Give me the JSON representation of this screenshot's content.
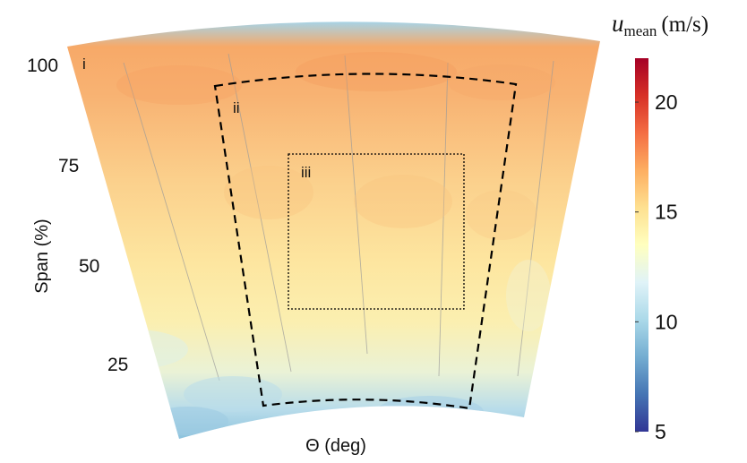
{
  "chart_data": {
    "type": "heatmap",
    "xlabel": "Θ (deg)",
    "ylabel": "Span (%)",
    "y_ticks": [
      {
        "value": 100,
        "label": "100"
      },
      {
        "value": 75,
        "label": "75"
      },
      {
        "value": 50,
        "label": "50"
      },
      {
        "value": 25,
        "label": "25"
      }
    ],
    "colorbar": {
      "title_symbol": "u",
      "title_subscript": "mean",
      "title_unit": "(m/s)",
      "range": [
        5,
        22
      ],
      "ticks": [
        {
          "value": 20,
          "label": "20"
        },
        {
          "value": 15,
          "label": "15"
        },
        {
          "value": 10,
          "label": "10"
        },
        {
          "value": 5,
          "label": "5"
        }
      ],
      "colors": [
        "#313695",
        "#4575b4",
        "#74add1",
        "#abd9e9",
        "#e0f3f8",
        "#ffffbf",
        "#fee090",
        "#fdae61",
        "#f46d43",
        "#d73027",
        "#a50026"
      ]
    },
    "regions": [
      {
        "label": "i",
        "style": "none"
      },
      {
        "label": "ii",
        "style": "dashed"
      },
      {
        "label": "iii",
        "style": "dotted"
      }
    ],
    "span_profile": [
      {
        "span": 100,
        "u": 17.5
      },
      {
        "span": 90,
        "u": 16.8
      },
      {
        "span": 75,
        "u": 15.8
      },
      {
        "span": 60,
        "u": 14.9
      },
      {
        "span": 50,
        "u": 14.3
      },
      {
        "span": 35,
        "u": 13.6
      },
      {
        "span": 25,
        "u": 12.8
      },
      {
        "span": 15,
        "u": 11.5
      }
    ]
  }
}
